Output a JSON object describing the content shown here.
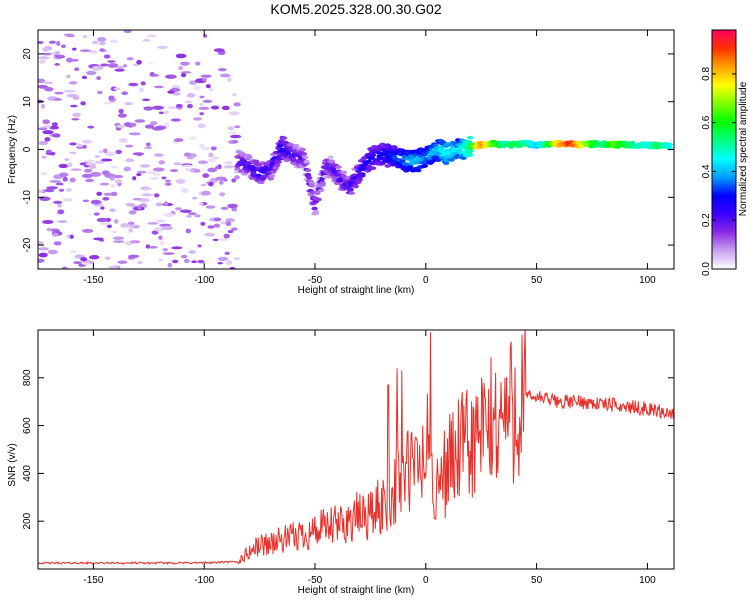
{
  "title": "KOM5.2025.328.00.30.G02",
  "chart_data": [
    {
      "type": "heatmap",
      "name": "spectrogram",
      "xlabel": "Height of straight line (km)",
      "ylabel": "Frequency (Hz)",
      "xlim": [
        -175,
        112
      ],
      "ylim": [
        -25,
        25
      ],
      "xticks": [
        -150,
        -100,
        -50,
        0,
        50,
        100
      ],
      "yticks": [
        -20,
        -10,
        0,
        10,
        20
      ],
      "colorbar": {
        "label": "Normalized spectral amplitude",
        "range": [
          0,
          0.98
        ],
        "ticks": [
          0.0,
          0.2,
          0.4,
          0.6,
          0.8
        ],
        "colors": [
          "#ffffff",
          "#c9a0f0",
          "#8a2be2",
          "#3a00ff",
          "#0000ff",
          "#00a0ff",
          "#00ffff",
          "#00ff80",
          "#00ff00",
          "#80ff00",
          "#ffff00",
          "#ffa000",
          "#ff3000",
          "#ff0060"
        ]
      },
      "dominant_trace": [
        {
          "x": -85,
          "f": -2.5,
          "a": 0.22
        },
        {
          "x": -80,
          "f": -3.5,
          "a": 0.25
        },
        {
          "x": -75,
          "f": -5,
          "a": 0.28
        },
        {
          "x": -70,
          "f": -4,
          "a": 0.25
        },
        {
          "x": -65,
          "f": 0.5,
          "a": 0.3
        },
        {
          "x": -60,
          "f": -1,
          "a": 0.25
        },
        {
          "x": -55,
          "f": -2,
          "a": 0.22
        },
        {
          "x": -50,
          "f": -12,
          "a": 0.22
        },
        {
          "x": -45,
          "f": -3,
          "a": 0.22
        },
        {
          "x": -40,
          "f": -5,
          "a": 0.25
        },
        {
          "x": -35,
          "f": -8,
          "a": 0.25
        },
        {
          "x": -30,
          "f": -5,
          "a": 0.28
        },
        {
          "x": -25,
          "f": -2,
          "a": 0.3
        },
        {
          "x": -20,
          "f": -1,
          "a": 0.32
        },
        {
          "x": -15,
          "f": -1.5,
          "a": 0.35
        },
        {
          "x": -10,
          "f": -2.2,
          "a": 0.4
        },
        {
          "x": -5,
          "f": -2.4,
          "a": 0.45
        },
        {
          "x": 0,
          "f": -1.8,
          "a": 0.4
        },
        {
          "x": 5,
          "f": 0,
          "a": 0.45
        },
        {
          "x": 10,
          "f": -0.8,
          "a": 0.5
        },
        {
          "x": 15,
          "f": 0,
          "a": 0.45
        },
        {
          "x": 20,
          "f": 0.5,
          "a": 0.6
        },
        {
          "x": 25,
          "f": 1,
          "a": 0.9
        },
        {
          "x": 30,
          "f": 1.2,
          "a": 0.7
        },
        {
          "x": 35,
          "f": 1,
          "a": 0.55
        },
        {
          "x": 40,
          "f": 1,
          "a": 0.6
        },
        {
          "x": 45,
          "f": 1.2,
          "a": 0.55
        },
        {
          "x": 50,
          "f": 1,
          "a": 0.45
        },
        {
          "x": 55,
          "f": 1.2,
          "a": 0.6
        },
        {
          "x": 60,
          "f": 1.2,
          "a": 0.85
        },
        {
          "x": 65,
          "f": 1.2,
          "a": 0.95
        },
        {
          "x": 70,
          "f": 1,
          "a": 0.8
        },
        {
          "x": 75,
          "f": 1.1,
          "a": 0.65
        },
        {
          "x": 80,
          "f": 1.2,
          "a": 0.55
        },
        {
          "x": 85,
          "f": 1,
          "a": 0.7
        },
        {
          "x": 90,
          "f": 1,
          "a": 0.6
        },
        {
          "x": 95,
          "f": 0.9,
          "a": 0.55
        },
        {
          "x": 100,
          "f": 0.9,
          "a": 0.5
        },
        {
          "x": 105,
          "f": 0.8,
          "a": 0.6
        },
        {
          "x": 110,
          "f": 0.7,
          "a": 0.5
        }
      ],
      "background_noise": {
        "x_range": [
          -175,
          -85
        ],
        "f_range": [
          -25,
          25
        ],
        "amplitude_range": [
          0.02,
          0.15
        ]
      }
    },
    {
      "type": "line",
      "name": "snr",
      "xlabel": "Height of straight line (km)",
      "ylabel": "SNR (v/v)",
      "xlim": [
        -175,
        112
      ],
      "ylim": [
        0,
        1000
      ],
      "xticks": [
        -150,
        -100,
        -50,
        0,
        50,
        100
      ],
      "yticks": [
        200,
        400,
        600,
        800
      ],
      "color": "#e8302a",
      "series": [
        {
          "name": "SNR",
          "x": [
            -175,
            -150,
            -125,
            -100,
            -85,
            -80,
            -75,
            -70,
            -65,
            -60,
            -55,
            -50,
            -45,
            -40,
            -35,
            -30,
            -25,
            -20,
            -15,
            -10,
            -5,
            0,
            2,
            4,
            10,
            20,
            30,
            40,
            45,
            50,
            60,
            70,
            80,
            90,
            100,
            112
          ],
          "values": [
            25,
            25,
            25,
            26,
            30,
            70,
            100,
            110,
            120,
            130,
            150,
            160,
            170,
            180,
            200,
            220,
            230,
            260,
            320,
            400,
            420,
            450,
            600,
            300,
            450,
            520,
            600,
            680,
            720,
            720,
            700,
            700,
            690,
            680,
            670,
            650
          ]
        }
      ],
      "spikes": [
        {
          "x": -17,
          "value": 770
        },
        {
          "x": -13,
          "value": 840
        },
        {
          "x": -11,
          "value": 830
        },
        {
          "x": 2,
          "value": 990
        },
        {
          "x": 4,
          "value": 210
        }
      ]
    }
  ]
}
